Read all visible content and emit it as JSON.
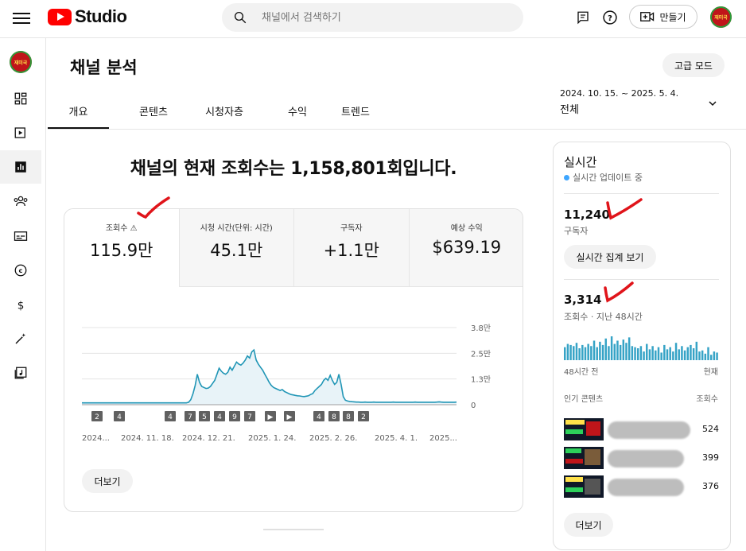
{
  "header": {
    "logo_text": "Studio",
    "search_placeholder": "채널에서 검색하기",
    "create_label": "만들기",
    "channel_avatar_text": "재미국"
  },
  "page": {
    "title": "채널 분석",
    "advanced_mode_label": "고급 모드",
    "tabs": [
      {
        "label": "개요",
        "active": true
      },
      {
        "label": "콘텐츠",
        "active": false
      },
      {
        "label": "시청자층",
        "active": false
      },
      {
        "label": "수익",
        "active": false
      },
      {
        "label": "트렌드",
        "active": false
      }
    ],
    "date_range": "2024. 10. 15. ~ 2025. 5. 4.",
    "date_range_sub": "전체"
  },
  "overview": {
    "headline": "채널의 현재 조회수는 1,158,801회입니다.",
    "metrics": [
      {
        "label": "조회수",
        "value": "115.9만",
        "warning": true
      },
      {
        "label": "시청 시간(단위: 시간)",
        "value": "45.1만"
      },
      {
        "label": "구독자",
        "value": "+1.1만"
      },
      {
        "label": "예상 수익",
        "value": "$639.19"
      }
    ],
    "more_label": "더보기"
  },
  "chart_data": {
    "type": "area",
    "y_tick_labels": [
      "3.8만",
      "2.5만",
      "1.3만",
      "0"
    ],
    "x_tick_labels": [
      "2024...",
      "2024. 11. 18.",
      "2024. 12. 21.",
      "2025. 1. 24.",
      "2025. 2. 26.",
      "2025. 4. 1.",
      "2025..."
    ],
    "ylim": [
      0,
      38000
    ],
    "series": [
      {
        "values": [
          900,
          900,
          900,
          900,
          900,
          900,
          900,
          900,
          900,
          900,
          900,
          900,
          900,
          900,
          900,
          900,
          900,
          900,
          900,
          900,
          900,
          900,
          900,
          900,
          900,
          900,
          900,
          900,
          900,
          900,
          900,
          900,
          900,
          900,
          900,
          900,
          900,
          900,
          900,
          900,
          900,
          900,
          900,
          900,
          900,
          900,
          900,
          900,
          900,
          1200,
          2500,
          5500,
          9500,
          15000,
          11000,
          9000,
          8500,
          8000,
          8200,
          9000,
          10500,
          12000,
          15000,
          18000,
          16500,
          15500,
          15000,
          16000,
          18500,
          17000,
          19000,
          21000,
          20000,
          19500,
          20500,
          22000,
          24000,
          23000,
          26000,
          27000,
          22000,
          20000,
          18500,
          17000,
          15000,
          13000,
          11000,
          9500,
          8500,
          8000,
          7500,
          7000,
          7500,
          6500,
          6000,
          5500,
          5000,
          4800,
          4600,
          4400,
          4300,
          4100,
          4000,
          4200,
          4400,
          5000,
          5500,
          7000,
          8000,
          9000,
          10000,
          12000,
          13000,
          12000,
          14500,
          12000,
          10000,
          11000,
          15000,
          10000,
          4000,
          2200,
          1800,
          1600,
          1500,
          1400,
          1300,
          1300,
          1200,
          1200,
          1300,
          1200,
          1200,
          1200,
          1300,
          1200,
          1200,
          1200,
          1200,
          1200,
          1200,
          1200,
          1200,
          1300,
          1200,
          1200,
          1200,
          1200,
          1200,
          1200,
          1200,
          1200,
          1200,
          1300,
          1200,
          1200,
          1200,
          1200,
          1200,
          1200,
          1200,
          1200,
          1200,
          1300,
          1400,
          1300,
          1200,
          1200,
          1200,
          1200,
          1200,
          1200,
          1300
        ]
      }
    ],
    "markers": [
      "2",
      "4",
      "4",
      "7",
      "5",
      "4",
      "9",
      "7",
      "▶",
      "▶",
      "4",
      "8",
      "8",
      "2"
    ]
  },
  "realtime": {
    "title": "실시간",
    "status": "실시간 업데이트 중",
    "subscribers_value": "11,240",
    "subscribers_label": "구독자",
    "view_realtime_btn": "실시간 집계 보기",
    "views_value": "3,314",
    "views_label": "조회수 · 지난 48시간",
    "bar_values": [
      12,
      15,
      14,
      13,
      16,
      11,
      14,
      12,
      15,
      13,
      18,
      12,
      17,
      14,
      20,
      13,
      22,
      15,
      18,
      14,
      19,
      16,
      21,
      13,
      12,
      11,
      13,
      8,
      15,
      10,
      13,
      9,
      12,
      7,
      14,
      10,
      12,
      8,
      16,
      10,
      13,
      9,
      12,
      14,
      11,
      17,
      8,
      9,
      6,
      12,
      5,
      8,
      7
    ],
    "axis_left": "48시간 전",
    "axis_right": "현재",
    "popular_header": "인기 콘텐츠",
    "popular_metric": "조회수",
    "popular_items": [
      {
        "views": "524"
      },
      {
        "views": "399"
      },
      {
        "views": "376"
      }
    ],
    "more_label": "더보기"
  },
  "colors": {
    "accent": "#ff0000",
    "chart_line": "#2196b6",
    "chart_fill": "#e8f3f8",
    "live_dot": "#3ea6ff",
    "annotation": "#e0141a"
  }
}
